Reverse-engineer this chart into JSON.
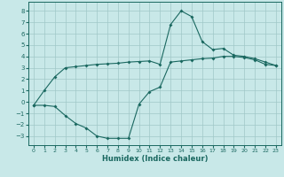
{
  "title": "",
  "xlabel": "Humidex (Indice chaleur)",
  "ylabel": "",
  "background_color": "#c8e8e8",
  "grid_color": "#a0c8c8",
  "line_color": "#1a6860",
  "xlim": [
    -0.5,
    23.5
  ],
  "ylim": [
    -3.8,
    8.8
  ],
  "xticks": [
    0,
    1,
    2,
    3,
    4,
    5,
    6,
    7,
    8,
    9,
    10,
    11,
    12,
    13,
    14,
    15,
    16,
    17,
    18,
    19,
    20,
    21,
    22,
    23
  ],
  "yticks": [
    -3,
    -2,
    -1,
    0,
    1,
    2,
    3,
    4,
    5,
    6,
    7,
    8
  ],
  "upper_line": [
    [
      0,
      -0.3
    ],
    [
      1,
      1.0
    ],
    [
      2,
      2.2
    ],
    [
      3,
      3.0
    ],
    [
      4,
      3.1
    ],
    [
      5,
      3.2
    ],
    [
      6,
      3.3
    ],
    [
      7,
      3.35
    ],
    [
      8,
      3.4
    ],
    [
      9,
      3.5
    ],
    [
      10,
      3.55
    ],
    [
      11,
      3.6
    ],
    [
      12,
      3.3
    ],
    [
      13,
      6.8
    ],
    [
      14,
      8.0
    ],
    [
      15,
      7.5
    ],
    [
      16,
      5.3
    ],
    [
      17,
      4.6
    ],
    [
      18,
      4.7
    ],
    [
      19,
      4.1
    ],
    [
      20,
      4.0
    ],
    [
      21,
      3.8
    ],
    [
      22,
      3.5
    ],
    [
      23,
      3.2
    ]
  ],
  "lower_line": [
    [
      0,
      -0.3
    ],
    [
      1,
      -0.3
    ],
    [
      2,
      -0.4
    ],
    [
      3,
      -1.2
    ],
    [
      4,
      -1.9
    ],
    [
      5,
      -2.3
    ],
    [
      6,
      -3.0
    ],
    [
      7,
      -3.2
    ],
    [
      8,
      -3.2
    ],
    [
      9,
      -3.2
    ],
    [
      10,
      -0.2
    ],
    [
      11,
      0.9
    ],
    [
      12,
      1.3
    ],
    [
      13,
      3.5
    ],
    [
      14,
      3.6
    ],
    [
      15,
      3.7
    ],
    [
      16,
      3.8
    ],
    [
      17,
      3.85
    ],
    [
      18,
      4.0
    ],
    [
      19,
      4.0
    ],
    [
      20,
      3.9
    ],
    [
      21,
      3.7
    ],
    [
      22,
      3.3
    ],
    [
      23,
      3.2
    ]
  ],
  "xlabel_fontsize": 6,
  "tick_fontsize": 4.5,
  "marker_size": 2.0
}
